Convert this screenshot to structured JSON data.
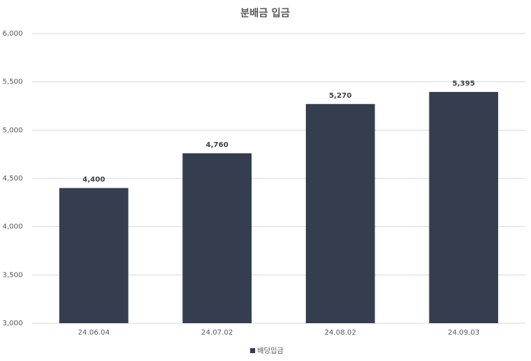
{
  "chart_data": {
    "type": "bar",
    "title": "분배금 입금",
    "categories": [
      "24.06.04",
      "24.07.02",
      "24.08.02",
      "24.09.03"
    ],
    "series": [
      {
        "name": "배당입금",
        "color": "#343e4e",
        "values": [
          4400,
          4760,
          5270,
          5395
        ],
        "value_labels": [
          "4,400",
          "4,760",
          "5,270",
          "5,395"
        ]
      }
    ],
    "ylim": [
      3000,
      6000
    ],
    "yticks": [
      {
        "value": 3000,
        "label": "3,000"
      },
      {
        "value": 3500,
        "label": "3,500"
      },
      {
        "value": 4000,
        "label": "4,000"
      },
      {
        "value": 4500,
        "label": "4,500"
      },
      {
        "value": 5000,
        "label": "5,000"
      },
      {
        "value": 5500,
        "label": "5,500"
      },
      {
        "value": 6000,
        "label": "6,000"
      }
    ],
    "grid": true,
    "legend": "bottom"
  }
}
